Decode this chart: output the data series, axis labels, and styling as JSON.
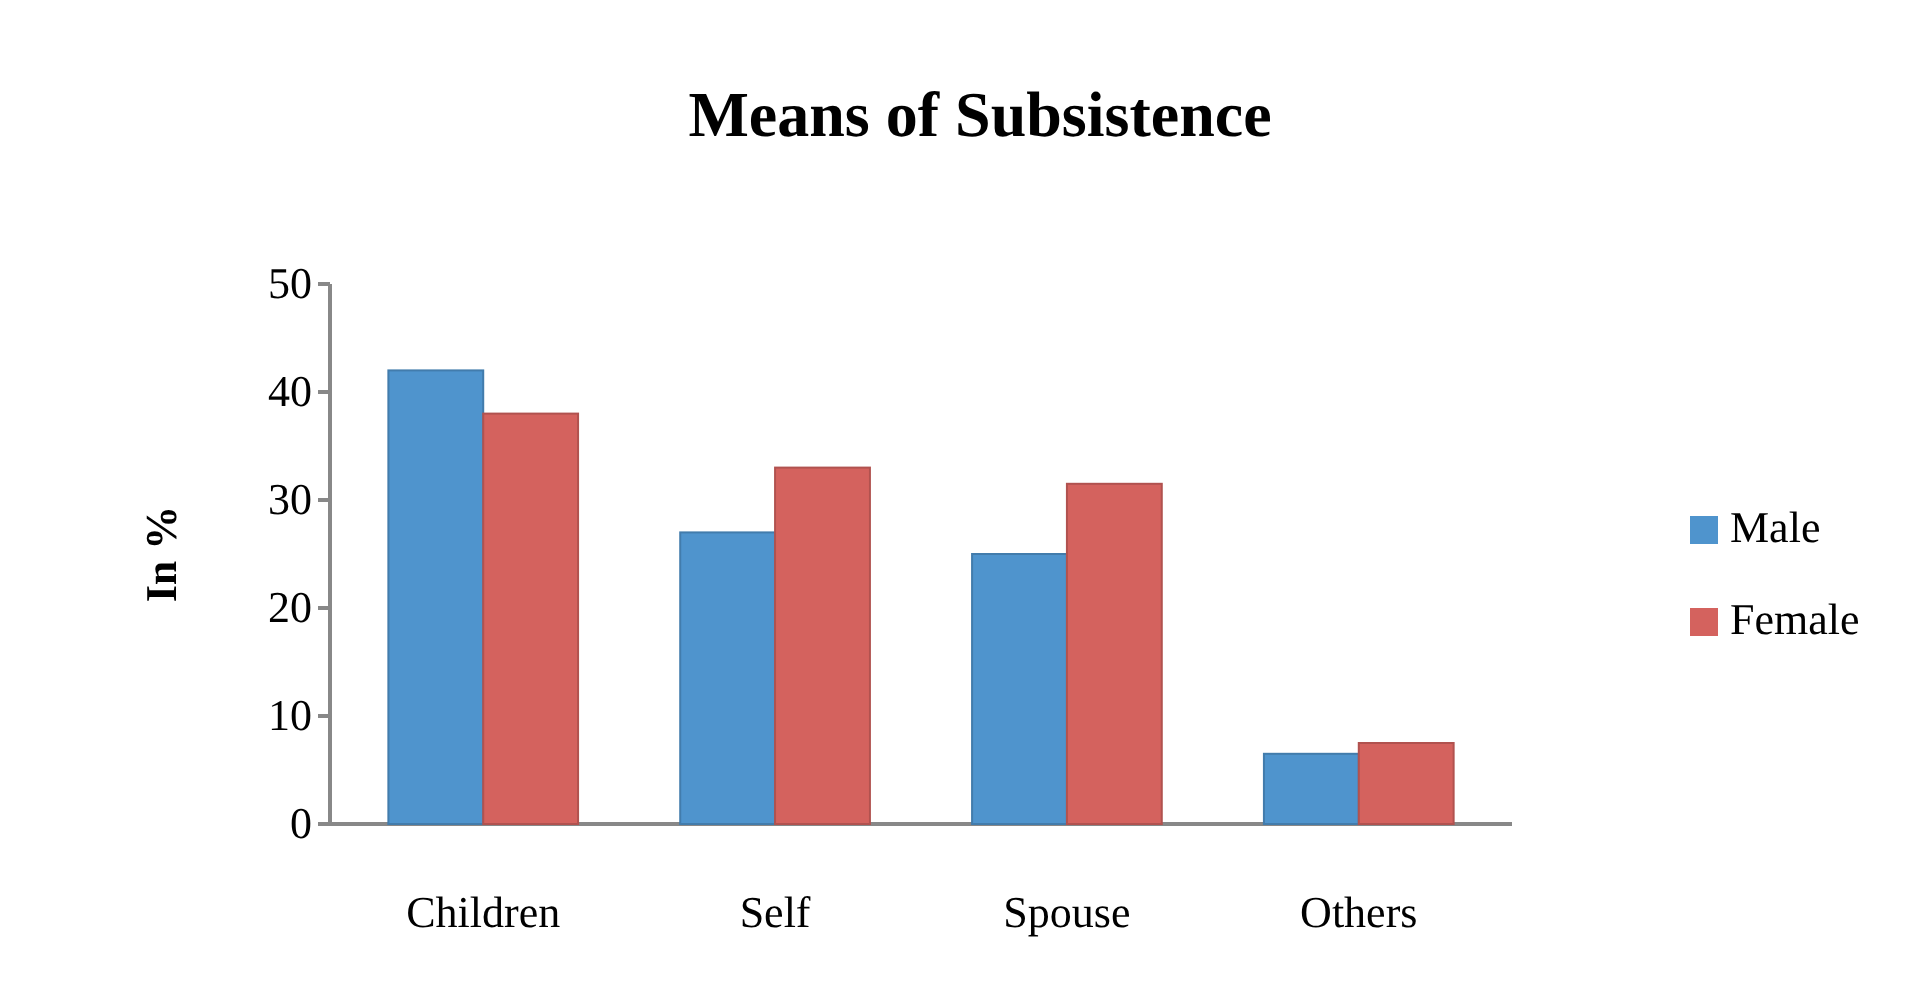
{
  "chart_data": {
    "type": "bar",
    "title": "Means of Subsistence",
    "ylabel": "In %",
    "categories": [
      "Children",
      "Self",
      "Spouse",
      "Others"
    ],
    "series": [
      {
        "name": "Male",
        "color": "#4f94cd",
        "values": [
          42,
          27,
          25,
          6.5
        ]
      },
      {
        "name": "Female",
        "color": "#d4625e",
        "values": [
          38,
          33,
          31.5,
          7.5
        ]
      }
    ],
    "ylim": [
      0,
      50
    ],
    "yticks": [
      0,
      10,
      20,
      30,
      40,
      50
    ],
    "legend": "right",
    "grid": false
  }
}
